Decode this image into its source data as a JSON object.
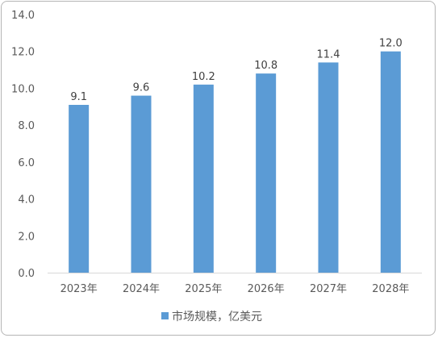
{
  "chart_data": {
    "type": "bar",
    "categories": [
      "2023年",
      "2024年",
      "2025年",
      "2026年",
      "2027年",
      "2028年"
    ],
    "series": [
      {
        "name": "市场规模，亿美元",
        "values": [
          9.1,
          9.6,
          10.2,
          10.8,
          11.4,
          12.0
        ],
        "data_labels": [
          "9.1",
          "9.6",
          "10.2",
          "10.8",
          "11.4",
          "12.0"
        ],
        "color": "#5b9bd5"
      }
    ],
    "y_ticks": [
      "0.0",
      "2.0",
      "4.0",
      "6.0",
      "8.0",
      "10.0",
      "12.0",
      "14.0"
    ],
    "ylim": [
      0,
      14
    ],
    "grid": false,
    "legend_position": "bottom",
    "axis_color": "#d9d9d9"
  }
}
